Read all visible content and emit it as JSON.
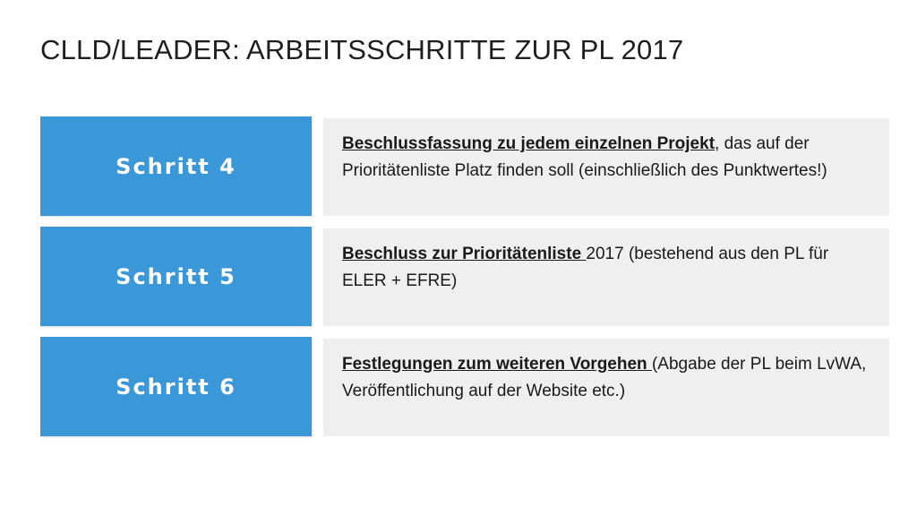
{
  "slide": {
    "title": "CLLD/LEADER: ARBEITSSCHRITTE ZUR PL 2017"
  },
  "steps": [
    {
      "label": "Schritt 4",
      "strong": "Beschlussfassung zu jedem einzelnen Projekt",
      "rest": ", das auf der Prioritätenliste Platz finden soll (einschließlich des Punktwertes!)"
    },
    {
      "label": "Schritt 5",
      "strong": "Beschluss zur Prioritätenliste ",
      "rest": "2017 (bestehend aus den PL für ELER + EFRE)"
    },
    {
      "label": "Schritt 6",
      "strong": "Festlegungen zum weiteren Vorgehen ",
      "rest": "(Abgabe der PL beim LvWA, Veröffentlichung auf der Website  etc.)"
    }
  ],
  "colors": {
    "step_box": "#3a97d8",
    "desc_box": "#efefef",
    "step_text": "#ffffff",
    "body_text": "#1a1a1a"
  }
}
